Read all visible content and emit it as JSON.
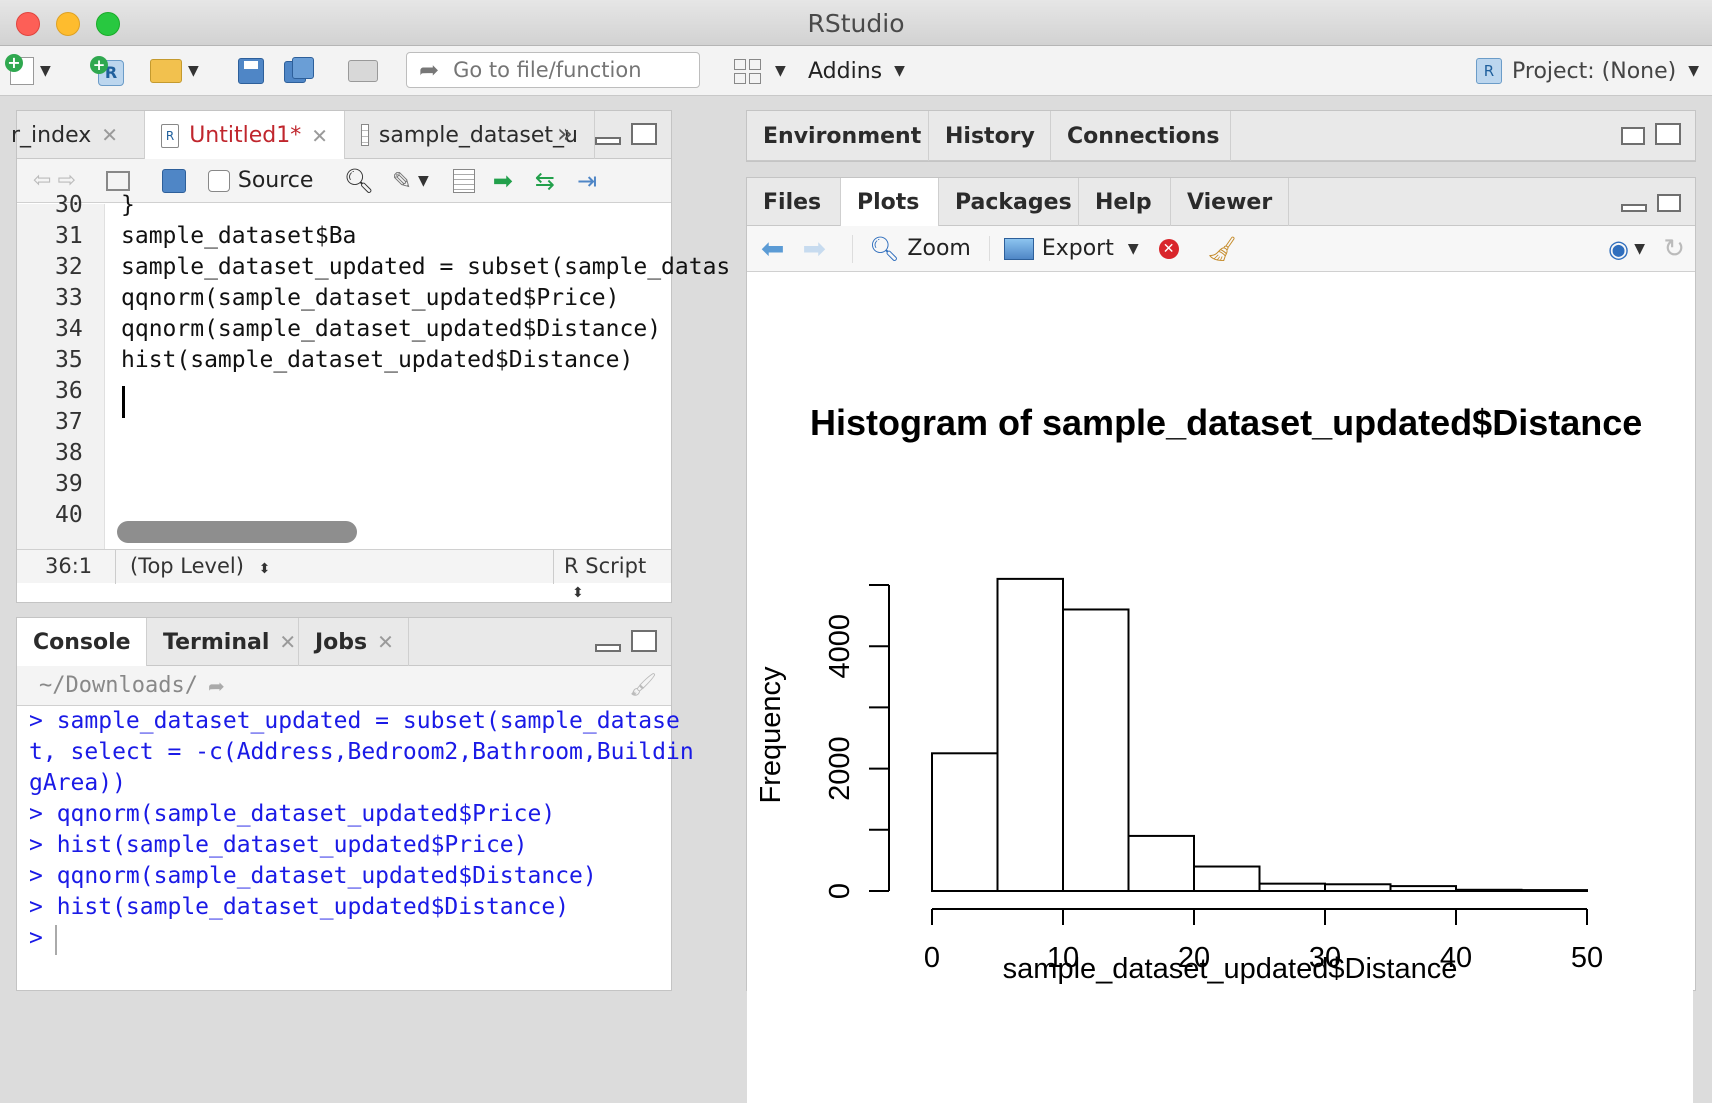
{
  "window": {
    "title": "RStudio"
  },
  "toolbar": {
    "goto_placeholder": "Go to file/function",
    "addins_label": "Addins",
    "project_label": "Project: (None)"
  },
  "source_pane": {
    "tabs": [
      {
        "label": "r_index"
      },
      {
        "label": "Untitled1*"
      },
      {
        "label": "sample_dataset_u"
      }
    ],
    "source_checkbox_label": "Source",
    "lines": [
      {
        "num": "30",
        "text": "}"
      },
      {
        "num": "31",
        "text": "sample_dataset$Ba"
      },
      {
        "num": "32",
        "text": "sample_dataset_updated = subset(sample_datas"
      },
      {
        "num": "33",
        "text": "qqnorm(sample_dataset_updated$Price)"
      },
      {
        "num": "34",
        "text": "qqnorm(sample_dataset_updated$Distance)"
      },
      {
        "num": "35",
        "text": "hist(sample_dataset_updated$Distance)"
      },
      {
        "num": "36",
        "text": ""
      },
      {
        "num": "37",
        "text": ""
      },
      {
        "num": "38",
        "text": ""
      },
      {
        "num": "39",
        "text": ""
      },
      {
        "num": "40",
        "text": ""
      }
    ],
    "status": {
      "position": "36:1",
      "scope": "(Top Level)",
      "filetype": "R Script"
    }
  },
  "console_pane": {
    "tabs": [
      {
        "label": "Console"
      },
      {
        "label": "Terminal"
      },
      {
        "label": "Jobs"
      }
    ],
    "path": "~/Downloads/",
    "lines": [
      "> sample_dataset_updated = subset(sample_datase",
      "t, select = -c(Address,Bedroom2,Bathroom,Buildin",
      "gArea))",
      "> qqnorm(sample_dataset_updated$Price)",
      "> hist(sample_dataset_updated$Price)",
      "> qqnorm(sample_dataset_updated$Distance)",
      "> hist(sample_dataset_updated$Distance)",
      ">"
    ]
  },
  "env_pane": {
    "tabs": [
      {
        "label": "Environment"
      },
      {
        "label": "History"
      },
      {
        "label": "Connections"
      }
    ]
  },
  "files_pane": {
    "tabs": [
      {
        "label": "Files"
      },
      {
        "label": "Plots"
      },
      {
        "label": "Packages"
      },
      {
        "label": "Help"
      },
      {
        "label": "Viewer"
      }
    ],
    "zoom_label": "Zoom",
    "export_label": "Export"
  },
  "chart_data": {
    "type": "bar",
    "title": "Histogram of sample_dataset_updated$Distance",
    "xlabel": "sample_dataset_updated$Distance",
    "ylabel": "Frequency",
    "bins": [
      {
        "x0": 0,
        "x1": 5,
        "value": 2250
      },
      {
        "x0": 5,
        "x1": 10,
        "value": 5100
      },
      {
        "x0": 10,
        "x1": 15,
        "value": 4600
      },
      {
        "x0": 15,
        "x1": 20,
        "value": 900
      },
      {
        "x0": 20,
        "x1": 25,
        "value": 400
      },
      {
        "x0": 25,
        "x1": 30,
        "value": 120
      },
      {
        "x0": 30,
        "x1": 35,
        "value": 110
      },
      {
        "x0": 35,
        "x1": 40,
        "value": 80
      },
      {
        "x0": 40,
        "x1": 45,
        "value": 20
      },
      {
        "x0": 45,
        "x1": 50,
        "value": 15
      }
    ],
    "xticks": [
      "0",
      "10",
      "20",
      "30",
      "40",
      "50"
    ],
    "yticks": [
      "0",
      "2000",
      "4000"
    ],
    "xlim": [
      0,
      50
    ],
    "ylim": [
      0,
      5000
    ]
  }
}
